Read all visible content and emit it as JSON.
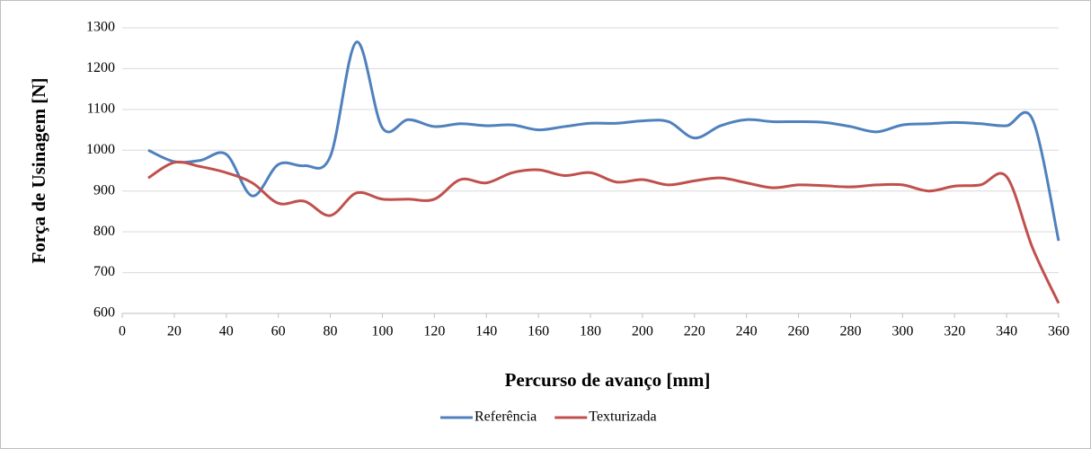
{
  "chart_data": {
    "type": "line",
    "xlabel": "Percurso de avanço [mm]",
    "ylabel": "Força de Usinagem [N]",
    "x": [
      10,
      20,
      30,
      40,
      50,
      60,
      70,
      80,
      90,
      100,
      110,
      120,
      130,
      140,
      150,
      160,
      170,
      180,
      190,
      200,
      210,
      220,
      230,
      240,
      250,
      260,
      270,
      280,
      290,
      300,
      310,
      320,
      330,
      340,
      350,
      360
    ],
    "series": [
      {
        "name": "Referência",
        "color": "#4f81bd",
        "values": [
          1000,
          972,
          975,
          990,
          888,
          965,
          962,
          985,
          1265,
          1055,
          1075,
          1058,
          1065,
          1060,
          1062,
          1050,
          1058,
          1066,
          1066,
          1072,
          1070,
          1030,
          1060,
          1075,
          1070,
          1070,
          1068,
          1058,
          1045,
          1062,
          1065,
          1068,
          1065,
          1060,
          1075,
          778
        ]
      },
      {
        "name": "Texturizada",
        "color": "#c0504d",
        "values": [
          932,
          970,
          960,
          945,
          920,
          870,
          875,
          840,
          895,
          880,
          880,
          880,
          928,
          920,
          945,
          952,
          938,
          945,
          922,
          928,
          915,
          925,
          932,
          920,
          908,
          915,
          913,
          910,
          915,
          915,
          900,
          912,
          915,
          935,
          760,
          625
        ]
      }
    ],
    "xlim": [
      0,
      360
    ],
    "xticks": [
      0,
      20,
      40,
      60,
      80,
      100,
      120,
      140,
      160,
      180,
      200,
      220,
      240,
      260,
      280,
      300,
      320,
      340,
      360
    ],
    "ylim": [
      600,
      1300
    ],
    "yticks": [
      600,
      700,
      800,
      900,
      1000,
      1100,
      1200,
      1300
    ],
    "grid": true,
    "legend": "bottom"
  }
}
